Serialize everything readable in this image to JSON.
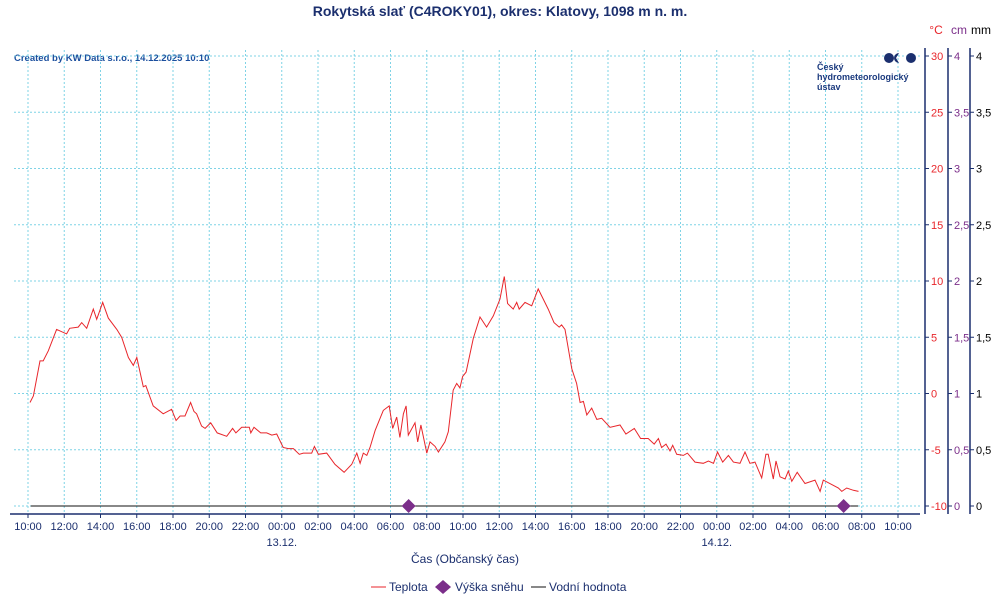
{
  "title": "Rokytská slať (C4ROKY01), okres: Klatovy, 1098 m n. m.",
  "created_by": "Created by KW Data s.r.o., 14.12.2025 10:10",
  "logo": {
    "line1": "Český",
    "line2": "hydrometeorologický",
    "line3": "ústav"
  },
  "colors": {
    "temperature": "#e8262b",
    "snow": "#7b2e8a",
    "water": "#111111",
    "axis": "#1b2f6e",
    "grid": "#7fd3e6"
  },
  "chart_data": {
    "type": "line",
    "title": "Rokytská slať (C4ROKY01), okres: Klatovy, 1098 m n. m.",
    "xlabel": "Čas (Občanský čas)",
    "x_unit": "hours since 12.12. 10:00",
    "x_range": [
      0,
      48
    ],
    "x_ticks": [
      "10:00",
      "12:00",
      "14:00",
      "16:00",
      "18:00",
      "20:00",
      "22:00",
      "00:00",
      "02:00",
      "04:00",
      "06:00",
      "08:00",
      "10:00",
      "12:00",
      "14:00",
      "16:00",
      "18:00",
      "20:00",
      "22:00",
      "00:00",
      "02:00",
      "04:00",
      "06:00",
      "08:00",
      "10:00"
    ],
    "date_labels": [
      {
        "hour": 14,
        "label": "13.12."
      },
      {
        "hour": 38,
        "label": "14.12."
      }
    ],
    "axes": [
      {
        "unit": "°C",
        "range": [
          -10,
          30
        ],
        "ticks": [
          "30",
          "25",
          "20",
          "15",
          "10",
          "5",
          "0",
          "-5",
          "-10"
        ]
      },
      {
        "unit": "cm",
        "range": [
          0,
          4
        ],
        "ticks": [
          "4",
          "3,5",
          "3",
          "2,5",
          "2",
          "1,5",
          "1",
          "0,5",
          "0"
        ]
      },
      {
        "unit": "mm",
        "range": [
          0,
          4
        ],
        "ticks": [
          "4",
          "3,5",
          "3",
          "2,5",
          "2",
          "1,5",
          "1",
          "0,5",
          "0"
        ]
      }
    ],
    "grid": true,
    "legend_position": "bottom-center",
    "series": [
      {
        "name": "Teplota",
        "unit": "°C",
        "type": "line",
        "points": [
          [
            0.11,
            -0.8
          ],
          [
            0.3,
            -0.2
          ],
          [
            0.66,
            2.9
          ],
          [
            0.84,
            2.9
          ],
          [
            1.12,
            3.8
          ],
          [
            1.58,
            5.7
          ],
          [
            2.13,
            5.3
          ],
          [
            2.3,
            5.8
          ],
          [
            2.77,
            5.9
          ],
          [
            2.96,
            6.3
          ],
          [
            3.24,
            5.8
          ],
          [
            3.6,
            7.5
          ],
          [
            3.79,
            6.6
          ],
          [
            4.12,
            8.1
          ],
          [
            4.43,
            6.7
          ],
          [
            4.9,
            5.7
          ],
          [
            5.17,
            5.0
          ],
          [
            5.54,
            3.2
          ],
          [
            5.81,
            2.5
          ],
          [
            6.0,
            3.2
          ],
          [
            6.36,
            0.6
          ],
          [
            6.5,
            0.7
          ],
          [
            6.91,
            -1.1
          ],
          [
            7.46,
            -1.8
          ],
          [
            7.92,
            -1.4
          ],
          [
            8.17,
            -2.4
          ],
          [
            8.39,
            -2.0
          ],
          [
            8.66,
            -2.0
          ],
          [
            8.97,
            -0.8
          ],
          [
            9.16,
            -1.6
          ],
          [
            9.3,
            -1.8
          ],
          [
            9.58,
            -2.9
          ],
          [
            9.77,
            -3.1
          ],
          [
            10.08,
            -2.6
          ],
          [
            10.44,
            -3.5
          ],
          [
            10.96,
            -3.8
          ],
          [
            11.29,
            -3.1
          ],
          [
            11.47,
            -3.5
          ],
          [
            11.79,
            -3.0
          ],
          [
            12.21,
            -3.0
          ],
          [
            12.29,
            -3.5
          ],
          [
            12.47,
            -3.0
          ],
          [
            12.84,
            -3.5
          ],
          [
            13.17,
            -3.5
          ],
          [
            13.45,
            -3.7
          ],
          [
            13.72,
            -3.6
          ],
          [
            14.08,
            -4.8
          ],
          [
            14.36,
            -4.9
          ],
          [
            14.64,
            -4.9
          ],
          [
            14.97,
            -5.4
          ],
          [
            15.19,
            -5.3
          ],
          [
            15.65,
            -5.3
          ],
          [
            15.8,
            -4.7
          ],
          [
            16.02,
            -5.4
          ],
          [
            16.48,
            -5.3
          ],
          [
            16.94,
            -6.3
          ],
          [
            17.44,
            -7.0
          ],
          [
            17.86,
            -6.3
          ],
          [
            18.14,
            -5.3
          ],
          [
            18.32,
            -6.2
          ],
          [
            18.5,
            -5.3
          ],
          [
            18.69,
            -5.5
          ],
          [
            18.87,
            -4.8
          ],
          [
            19.15,
            -3.3
          ],
          [
            19.6,
            -1.5
          ],
          [
            19.93,
            -1.1
          ],
          [
            20.12,
            -3.1
          ],
          [
            20.34,
            -2.1
          ],
          [
            20.52,
            -3.9
          ],
          [
            20.71,
            -1.8
          ],
          [
            20.86,
            -1.1
          ],
          [
            20.98,
            -3.7
          ],
          [
            21.35,
            -2.6
          ],
          [
            21.5,
            -4.3
          ],
          [
            21.68,
            -2.8
          ],
          [
            22.0,
            -5.3
          ],
          [
            22.18,
            -4.3
          ],
          [
            22.46,
            -4.7
          ],
          [
            22.64,
            -5.2
          ],
          [
            23.0,
            -4.3
          ],
          [
            23.19,
            -3.4
          ],
          [
            23.46,
            0.3
          ],
          [
            23.65,
            0.9
          ],
          [
            23.83,
            0.5
          ],
          [
            23.98,
            1.5
          ],
          [
            24.17,
            1.9
          ],
          [
            24.57,
            4.9
          ],
          [
            24.94,
            6.8
          ],
          [
            25.3,
            5.9
          ],
          [
            25.67,
            6.9
          ],
          [
            26.04,
            8.4
          ],
          [
            26.28,
            10.4
          ],
          [
            26.46,
            8.0
          ],
          [
            26.77,
            7.5
          ],
          [
            26.96,
            8.1
          ],
          [
            27.1,
            7.5
          ],
          [
            27.42,
            8.1
          ],
          [
            27.79,
            7.8
          ],
          [
            28.15,
            9.3
          ],
          [
            28.7,
            7.5
          ],
          [
            29.02,
            6.3
          ],
          [
            29.31,
            5.9
          ],
          [
            29.44,
            6.1
          ],
          [
            29.63,
            5.7
          ],
          [
            30.0,
            2.2
          ],
          [
            30.27,
            0.9
          ],
          [
            30.46,
            -0.8
          ],
          [
            30.64,
            -0.7
          ],
          [
            30.83,
            -1.9
          ],
          [
            31.1,
            -1.3
          ],
          [
            31.38,
            -2.3
          ],
          [
            31.65,
            -2.2
          ],
          [
            32.11,
            -3.0
          ],
          [
            32.66,
            -2.8
          ],
          [
            32.99,
            -3.6
          ],
          [
            33.45,
            -3.1
          ],
          [
            33.8,
            -4.0
          ],
          [
            34.22,
            -4.0
          ],
          [
            34.55,
            -4.5
          ],
          [
            34.78,
            -4.0
          ],
          [
            34.96,
            -4.8
          ],
          [
            35.2,
            -4.5
          ],
          [
            35.42,
            -5.1
          ],
          [
            35.57,
            -4.6
          ],
          [
            35.79,
            -5.4
          ],
          [
            36.16,
            -5.5
          ],
          [
            36.38,
            -5.3
          ],
          [
            36.8,
            -6.1
          ],
          [
            37.26,
            -6.2
          ],
          [
            37.54,
            -6.0
          ],
          [
            37.82,
            -6.2
          ],
          [
            38.04,
            -5.2
          ],
          [
            38.33,
            -6.1
          ],
          [
            38.64,
            -5.5
          ],
          [
            38.92,
            -6.1
          ],
          [
            39.28,
            -6.2
          ],
          [
            39.56,
            -5.2
          ],
          [
            39.83,
            -6.2
          ],
          [
            40.11,
            -6.1
          ],
          [
            40.48,
            -7.5
          ],
          [
            40.71,
            -5.4
          ],
          [
            40.84,
            -5.4
          ],
          [
            41.12,
            -7.6
          ],
          [
            41.27,
            -6.0
          ],
          [
            41.49,
            -7.4
          ],
          [
            41.77,
            -7.6
          ],
          [
            41.95,
            -6.9
          ],
          [
            42.14,
            -7.8
          ],
          [
            42.44,
            -7.0
          ],
          [
            42.87,
            -8.0
          ],
          [
            43.42,
            -7.7
          ],
          [
            43.7,
            -8.7
          ],
          [
            43.88,
            -7.7
          ],
          [
            44.71,
            -8.4
          ],
          [
            44.9,
            -8.7
          ],
          [
            45.17,
            -8.4
          ],
          [
            45.54,
            -8.6
          ],
          [
            45.82,
            -8.7
          ]
        ]
      },
      {
        "name": "Výška sněhu",
        "unit": "cm",
        "type": "scatter",
        "points": [
          [
            21.0,
            0
          ],
          [
            45.0,
            0
          ]
        ]
      },
      {
        "name": "Vodní hodnota",
        "unit": "mm",
        "type": "line",
        "points": [
          [
            0.15,
            0
          ],
          [
            45.8,
            0
          ]
        ]
      }
    ]
  }
}
